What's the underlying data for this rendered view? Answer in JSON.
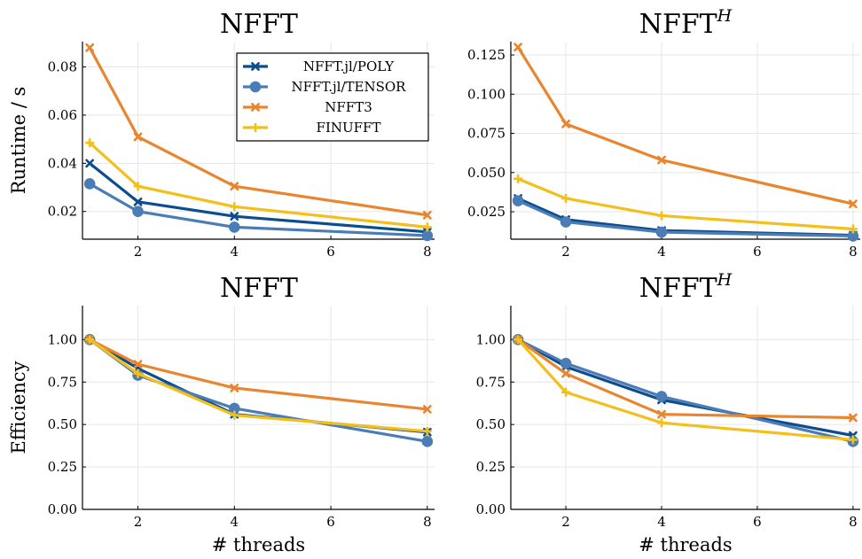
{
  "colors": {
    "poly": "#0b4d8f",
    "tensor": "#4a7db6",
    "nfft3": "#e9852e",
    "finufft": "#f3bf1a"
  },
  "chart_data": [
    {
      "id": "nfft-runtime",
      "type": "line",
      "title": "NFFT",
      "title_sup": "",
      "xlabel": "",
      "ylabel": "Runtime / s",
      "xlim": [
        0.85,
        8.15
      ],
      "ylim": [
        0.0085,
        0.0905
      ],
      "xticks": [
        2,
        4,
        6,
        8
      ],
      "yticks": [
        0.02,
        0.04,
        0.06,
        0.08
      ],
      "ytick_labels": [
        "0.02",
        "0.04",
        "0.06",
        "0.08"
      ],
      "grid": true,
      "legend": "top-right",
      "x": [
        1,
        2,
        4,
        8
      ],
      "series": [
        {
          "name": "NFFT.jl/POLY",
          "marker": "x",
          "color": "#0b4d8f",
          "values": [
            0.04,
            0.024,
            0.018,
            0.0115
          ]
        },
        {
          "name": "NFFT.jl/TENSOR",
          "marker": "circle",
          "color": "#4a7db6",
          "values": [
            0.0315,
            0.02,
            0.0135,
            0.01
          ]
        },
        {
          "name": "NFFT3",
          "marker": "x",
          "color": "#e9852e",
          "values": [
            0.088,
            0.051,
            0.0305,
            0.0185
          ]
        },
        {
          "name": "FINUFFT",
          "marker": "plus",
          "color": "#f3bf1a",
          "values": [
            0.0485,
            0.0305,
            0.022,
            0.0135
          ]
        }
      ]
    },
    {
      "id": "nffth-runtime",
      "type": "line",
      "title": "NFFT",
      "title_sup": "H",
      "xlabel": "",
      "ylabel": "",
      "xlim": [
        0.85,
        8.15
      ],
      "ylim": [
        0.0075,
        0.1335
      ],
      "xticks": [
        2,
        4,
        6,
        8
      ],
      "yticks": [
        0.025,
        0.05,
        0.075,
        0.1,
        0.125
      ],
      "ytick_labels": [
        "0.025",
        "0.050",
        "0.075",
        "0.100",
        "0.125"
      ],
      "grid": true,
      "legend": "",
      "x": [
        1,
        2,
        4,
        8
      ],
      "series": [
        {
          "name": "NFFT.jl/POLY",
          "marker": "x",
          "color": "#0b4d8f",
          "values": [
            0.0335,
            0.02,
            0.013,
            0.01
          ]
        },
        {
          "name": "NFFT.jl/TENSOR",
          "marker": "circle",
          "color": "#4a7db6",
          "values": [
            0.032,
            0.0185,
            0.012,
            0.0095
          ]
        },
        {
          "name": "NFFT3",
          "marker": "x",
          "color": "#e9852e",
          "values": [
            0.13,
            0.081,
            0.058,
            0.03
          ]
        },
        {
          "name": "FINUFFT",
          "marker": "plus",
          "color": "#f3bf1a",
          "values": [
            0.046,
            0.0335,
            0.0225,
            0.014
          ]
        }
      ]
    },
    {
      "id": "nfft-efficiency",
      "type": "line",
      "title": "NFFT",
      "title_sup": "",
      "xlabel": "# threads",
      "ylabel": "Efficiency",
      "xlim": [
        0.85,
        8.15
      ],
      "ylim": [
        0.0,
        1.2
      ],
      "xticks": [
        2,
        4,
        6,
        8
      ],
      "yticks": [
        0.0,
        0.25,
        0.5,
        0.75,
        1.0
      ],
      "ytick_labels": [
        "0.00",
        "0.25",
        "0.50",
        "0.75",
        "1.00"
      ],
      "grid": true,
      "legend": "",
      "x": [
        1,
        2,
        4,
        8
      ],
      "series": [
        {
          "name": "NFFT.jl/POLY",
          "marker": "x",
          "color": "#0b4d8f",
          "values": [
            1.0,
            0.83,
            0.56,
            0.455
          ]
        },
        {
          "name": "NFFT.jl/TENSOR",
          "marker": "circle",
          "color": "#4a7db6",
          "values": [
            1.0,
            0.79,
            0.595,
            0.4
          ]
        },
        {
          "name": "NFFT3",
          "marker": "x",
          "color": "#e9852e",
          "values": [
            1.0,
            0.855,
            0.715,
            0.59
          ]
        },
        {
          "name": "FINUFFT",
          "marker": "plus",
          "color": "#f3bf1a",
          "values": [
            1.0,
            0.8,
            0.555,
            0.46
          ]
        }
      ]
    },
    {
      "id": "nffth-efficiency",
      "type": "line",
      "title": "NFFT",
      "title_sup": "H",
      "xlabel": "# threads",
      "ylabel": "",
      "xlim": [
        0.85,
        8.15
      ],
      "ylim": [
        0.0,
        1.2
      ],
      "xticks": [
        2,
        4,
        6,
        8
      ],
      "yticks": [
        0.0,
        0.25,
        0.5,
        0.75,
        1.0
      ],
      "ytick_labels": [
        "0.00",
        "0.25",
        "0.50",
        "0.75",
        "1.00"
      ],
      "grid": true,
      "legend": "",
      "x": [
        1,
        2,
        4,
        8
      ],
      "series": [
        {
          "name": "NFFT.jl/POLY",
          "marker": "x",
          "color": "#0b4d8f",
          "values": [
            1.0,
            0.84,
            0.645,
            0.435
          ]
        },
        {
          "name": "NFFT.jl/TENSOR",
          "marker": "circle",
          "color": "#4a7db6",
          "values": [
            1.0,
            0.86,
            0.665,
            0.4
          ]
        },
        {
          "name": "NFFT3",
          "marker": "x",
          "color": "#e9852e",
          "values": [
            1.0,
            0.8,
            0.56,
            0.54
          ]
        },
        {
          "name": "FINUFFT",
          "marker": "plus",
          "color": "#f3bf1a",
          "values": [
            1.0,
            0.69,
            0.51,
            0.41
          ]
        }
      ]
    }
  ]
}
